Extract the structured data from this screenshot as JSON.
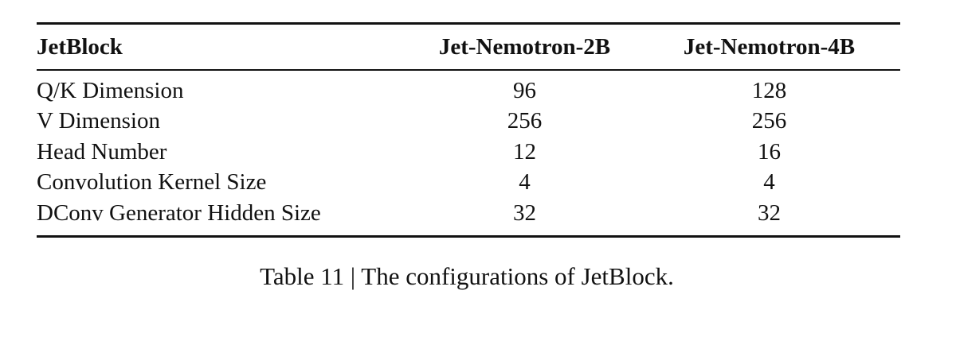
{
  "table": {
    "header": [
      "JetBlock",
      "Jet-Nemotron-2B",
      "Jet-Nemotron-4B"
    ],
    "rows": [
      [
        "Q/K Dimension",
        "96",
        "128"
      ],
      [
        "V Dimension",
        "256",
        "256"
      ],
      [
        "Head Number",
        "12",
        "16"
      ],
      [
        "Convolution Kernel Size",
        "4",
        "4"
      ],
      [
        "DConv Generator Hidden Size",
        "32",
        "32"
      ]
    ]
  },
  "caption": "Table 11 | The configurations of JetBlock."
}
